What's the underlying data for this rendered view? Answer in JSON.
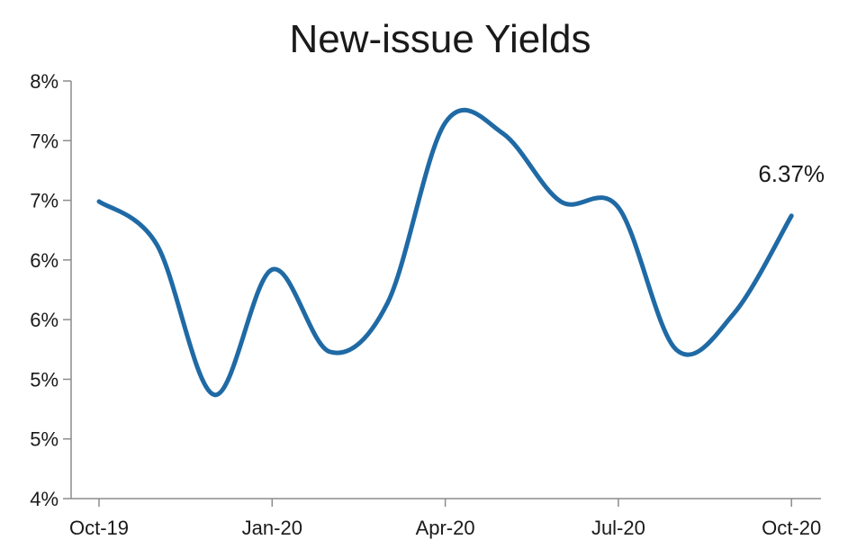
{
  "chart_data": {
    "type": "line",
    "title": "New-issue Yields",
    "xlabel": "",
    "ylabel": "",
    "x": [
      "Oct-19",
      "Nov-19",
      "Dec-19",
      "Jan-20",
      "Feb-20",
      "Mar-20",
      "Apr-20",
      "May-20",
      "Jun-20",
      "Jul-20",
      "Aug-20",
      "Sep-20",
      "Oct-20"
    ],
    "ytick_values": [
      4.0,
      4.5,
      5.0,
      5.5,
      6.0,
      6.5,
      7.0,
      7.5
    ],
    "ytick_labels": [
      "4%",
      "5%",
      "5%",
      "6%",
      "6%",
      "7%",
      "7%",
      "8%"
    ],
    "xtick_labels": [
      "Oct-19",
      "Jan-20",
      "Apr-20",
      "Jul-20",
      "Oct-20"
    ],
    "xtick_indices": [
      0,
      3,
      6,
      9,
      12
    ],
    "ylim": [
      4.0,
      7.5
    ],
    "grid": false,
    "series": [
      {
        "name": "",
        "color": "#1f6aa5",
        "values": [
          6.49,
          6.13,
          4.87,
          5.92,
          5.23,
          5.64,
          7.15,
          7.06,
          6.49,
          6.44,
          5.25,
          5.55,
          6.37
        ]
      }
    ],
    "annotations": [
      {
        "text": "6.37%",
        "x": "Oct-20",
        "y": 6.37
      }
    ]
  }
}
